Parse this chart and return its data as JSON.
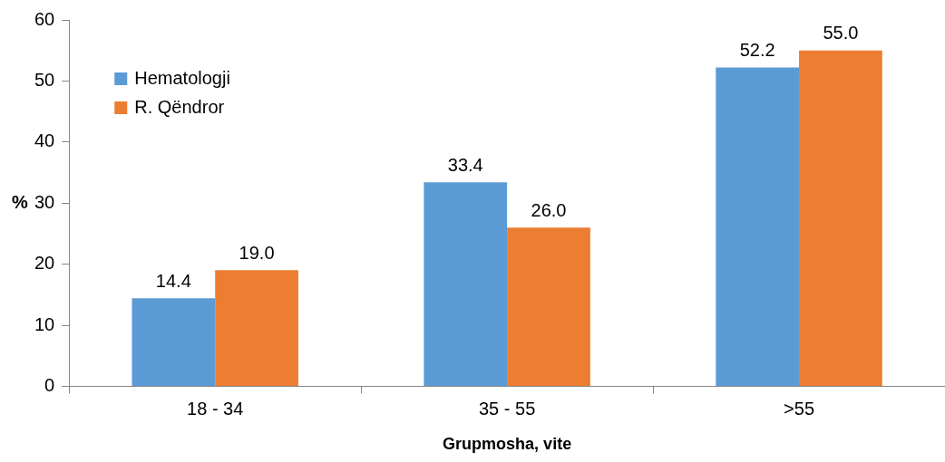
{
  "chart_data": {
    "type": "bar",
    "xlabel": "Grupmosha, vite",
    "ylabel": "%",
    "categories": [
      "18 - 34",
      "35 - 55",
      ">55"
    ],
    "series": [
      {
        "name": "Hematologji",
        "color": "#5b9bd5",
        "values": [
          14.4,
          33.4,
          52.2
        ],
        "value_labels": [
          "14.4",
          "33.4",
          "52.2"
        ]
      },
      {
        "name": "R. Qëndror",
        "color": "#ed7d31",
        "values": [
          19.0,
          26.0,
          55.0
        ],
        "value_labels": [
          "19.0",
          "26.0",
          "55.0"
        ]
      }
    ],
    "ylim": [
      0,
      60
    ],
    "yticks": [
      0,
      10,
      20,
      30,
      40,
      50,
      60
    ],
    "grid": false,
    "legend": "top left"
  }
}
